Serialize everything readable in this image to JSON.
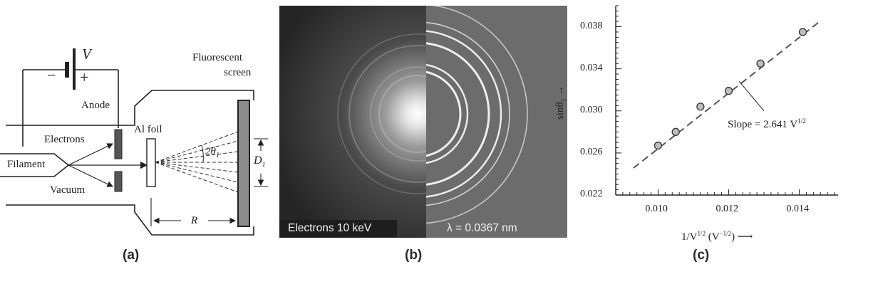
{
  "panel_a": {
    "label": "(a)",
    "voltage_symbol": "V",
    "minus_sign": "−",
    "plus_sign": "+",
    "anode_label": "Anode",
    "electrons_label": "Electrons",
    "filament_label": "Filament",
    "vacuum_label": "Vacuum",
    "foil_label": "Al foil",
    "screen_label_line1": "Fluorescent",
    "screen_label_line2": "screen",
    "angle_label": "2θ",
    "angle_sub": "1",
    "distance_label": "R",
    "diameter_label": "D",
    "diameter_sub": "1"
  },
  "panel_b": {
    "label": "(b)",
    "caption_left": "Electrons 10 keV",
    "caption_right": "λ = 0.0367 nm"
  },
  "panel_c": {
    "label": "(c)",
    "y_axis_label": "sinθ",
    "y_axis_sub": "1",
    "y_arrow": "→",
    "x_axis_label": "1/V",
    "x_axis_sup": "1/2",
    "x_axis_unit": " (V",
    "x_axis_unit_sup": "−1/2",
    "x_axis_unit_close": ")",
    "x_arrow": "⟶",
    "slope_text": "Slope = 2.641 V",
    "slope_sup": "1/2"
  },
  "chart_data": {
    "type": "scatter",
    "title": "",
    "xlabel": "1/V^1/2 (V^−1/2)",
    "ylabel": "sinθ1",
    "xlim": [
      0.0088,
      0.0151
    ],
    "ylim": [
      0.022,
      0.04
    ],
    "x_ticks": [
      "0.010",
      "0.012",
      "0.014"
    ],
    "x_tick_values": [
      0.01,
      0.012,
      0.014
    ],
    "y_ticks": [
      "0.022",
      "0.026",
      "0.030",
      "0.034",
      "0.038"
    ],
    "y_tick_values": [
      0.022,
      0.026,
      0.03,
      0.034,
      0.038
    ],
    "points": [
      {
        "x": 0.01,
        "y": 0.0267
      },
      {
        "x": 0.0105,
        "y": 0.028
      },
      {
        "x": 0.0112,
        "y": 0.0304
      },
      {
        "x": 0.012,
        "y": 0.0319
      },
      {
        "x": 0.0129,
        "y": 0.0345
      },
      {
        "x": 0.0141,
        "y": 0.0375
      }
    ],
    "fit_line": {
      "slope": 2.641,
      "x_start": 0.0093,
      "x_end": 0.0146
    },
    "annotation": "Slope = 2.641 V1/2",
    "grid": false,
    "marker_color": "#bdbdbd",
    "line_color": "#555555"
  }
}
